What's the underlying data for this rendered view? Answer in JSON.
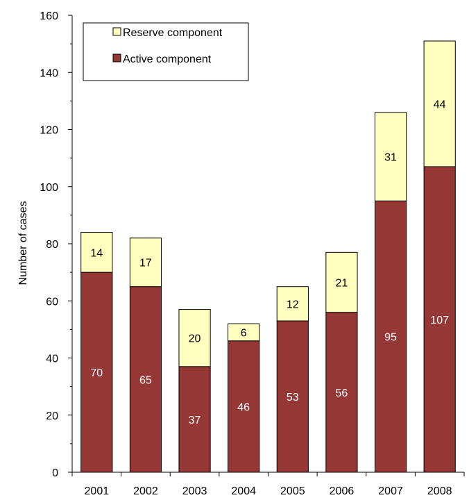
{
  "chart_data": {
    "type": "bar",
    "stacked": true,
    "categories": [
      "2001",
      "2002",
      "2003",
      "2004",
      "2005",
      "2006",
      "2007",
      "2008"
    ],
    "series": [
      {
        "name": "Active component",
        "values": [
          70,
          65,
          37,
          46,
          53,
          56,
          95,
          107
        ],
        "color": "#953735",
        "label_color": "#ffffff"
      },
      {
        "name": "Reserve component",
        "values": [
          14,
          17,
          20,
          6,
          12,
          21,
          31,
          44
        ],
        "color": "#ffffc0",
        "label_color": "#000000"
      }
    ],
    "ylabel": "Number of cases",
    "ylim": [
      0,
      160
    ],
    "yticks": [
      0,
      20,
      40,
      60,
      80,
      100,
      120,
      140,
      160
    ],
    "grid": false,
    "legend": {
      "placement": "top-left",
      "order": [
        "Reserve component",
        "Active component"
      ]
    }
  }
}
